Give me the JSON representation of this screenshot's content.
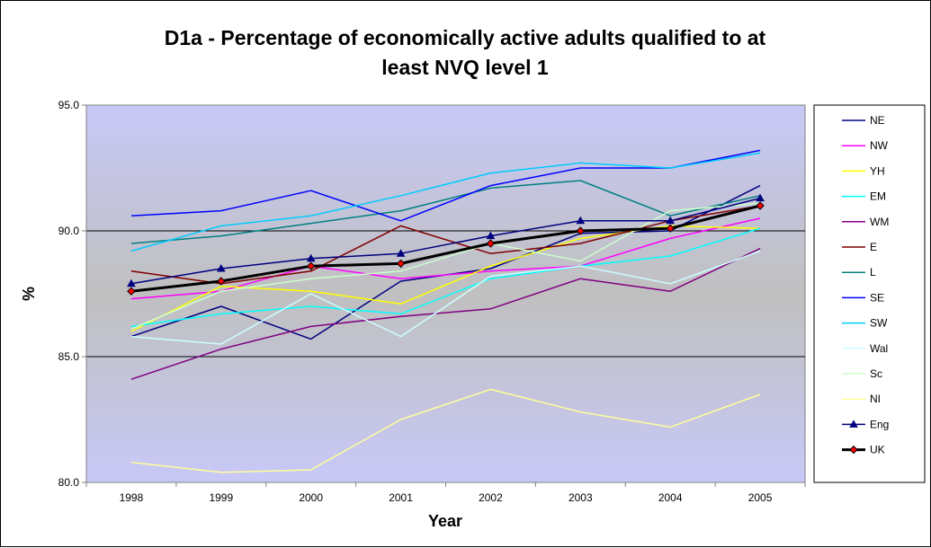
{
  "chart_data": {
    "type": "line",
    "title_line1": "D1a - Percentage of economically active adults qualified to at",
    "title_line2": "least NVQ level 1",
    "xlabel": "Year",
    "ylabel": "%",
    "categories": [
      "1998",
      "1999",
      "2000",
      "2001",
      "2002",
      "2003",
      "2004",
      "2005"
    ],
    "ylim": [
      80.0,
      95.0
    ],
    "yticks": [
      80.0,
      85.0,
      90.0,
      95.0
    ],
    "ytick_labels": [
      "80.0",
      "85.0",
      "90.0",
      "95.0"
    ],
    "grid": "horizontal major lines",
    "legend_position": "right",
    "colors": {
      "plot_background_top": "#c8c8f8",
      "plot_background_middle": "#c0c0c0"
    },
    "series": [
      {
        "name": "NE",
        "color": "#000080",
        "marker": "none",
        "values": [
          85.8,
          87.0,
          85.7,
          88.0,
          88.5,
          89.9,
          90.0,
          91.8
        ]
      },
      {
        "name": "NW",
        "color": "#ff00ff",
        "marker": "none",
        "values": [
          87.3,
          87.6,
          88.6,
          88.1,
          88.4,
          88.6,
          89.7,
          90.5
        ]
      },
      {
        "name": "YH",
        "color": "#ffff00",
        "marker": "none",
        "values": [
          86.0,
          87.8,
          87.6,
          87.1,
          88.6,
          89.7,
          90.2,
          90.1
        ]
      },
      {
        "name": "EM",
        "color": "#00ffff",
        "marker": "none",
        "values": [
          86.2,
          86.7,
          87.0,
          86.7,
          88.1,
          88.6,
          89.0,
          90.1
        ]
      },
      {
        "name": "WM",
        "color": "#800080",
        "marker": "none",
        "values": [
          84.1,
          85.3,
          86.2,
          86.6,
          86.9,
          88.1,
          87.6,
          89.3
        ]
      },
      {
        "name": "E",
        "color": "#800000",
        "marker": "none",
        "values": [
          88.4,
          87.9,
          88.4,
          90.2,
          89.1,
          89.5,
          90.4,
          91.0
        ]
      },
      {
        "name": "L",
        "color": "#008080",
        "marker": "none",
        "values": [
          89.5,
          89.8,
          90.3,
          90.8,
          91.7,
          92.0,
          90.6,
          91.4
        ]
      },
      {
        "name": "SE",
        "color": "#0000ff",
        "marker": "none",
        "values": [
          90.6,
          90.8,
          91.6,
          90.4,
          91.8,
          92.5,
          92.5,
          93.2
        ]
      },
      {
        "name": "SW",
        "color": "#00ccff",
        "marker": "none",
        "values": [
          89.2,
          90.2,
          90.6,
          91.4,
          92.3,
          92.7,
          92.5,
          93.1
        ]
      },
      {
        "name": "Wal",
        "color": "#ccffff",
        "marker": "none",
        "values": [
          85.8,
          85.5,
          87.5,
          85.8,
          88.2,
          88.6,
          87.9,
          89.2
        ]
      },
      {
        "name": "Sc",
        "color": "#ccffcc",
        "marker": "none",
        "values": [
          86.1,
          87.6,
          88.1,
          88.4,
          89.5,
          88.8,
          90.8,
          91.1
        ]
      },
      {
        "name": "NI",
        "color": "#ffff99",
        "marker": "none",
        "values": [
          80.8,
          80.4,
          80.5,
          82.5,
          83.7,
          82.8,
          82.2,
          83.5
        ]
      },
      {
        "name": "Eng",
        "color": "#000080",
        "marker": "triangle",
        "values": [
          87.9,
          88.5,
          88.9,
          89.1,
          89.8,
          90.4,
          90.4,
          91.3
        ]
      },
      {
        "name": "UK",
        "color": "#000000",
        "marker": "diamond",
        "marker_fill": "#ff0000",
        "values": [
          87.6,
          88.0,
          88.6,
          88.7,
          89.5,
          90.0,
          90.1,
          91.0
        ]
      }
    ]
  }
}
